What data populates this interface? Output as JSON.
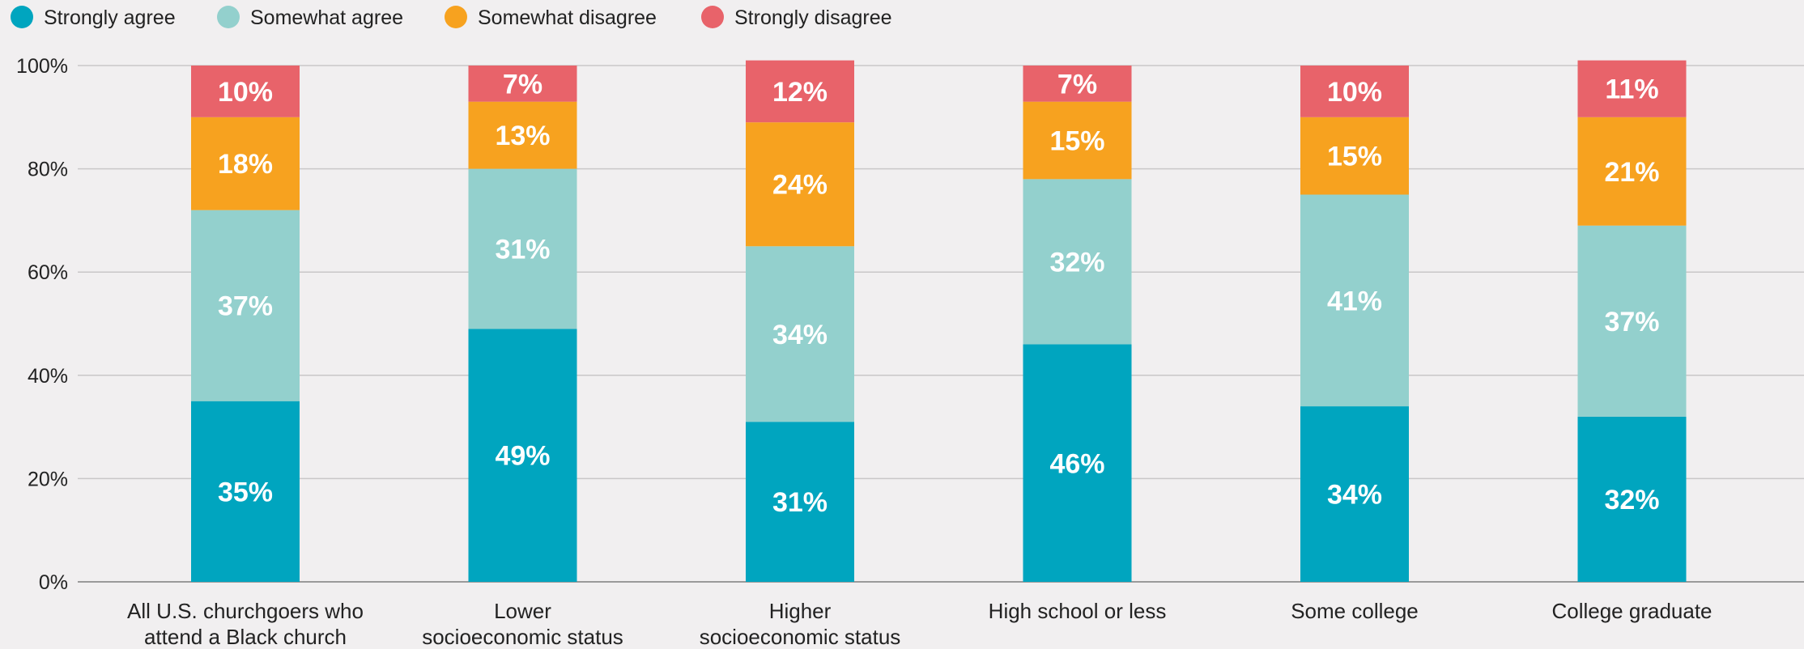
{
  "chart_data": {
    "type": "bar",
    "stacked": true,
    "title": "",
    "xlabel": "",
    "ylabel": "",
    "ylim": [
      0,
      100
    ],
    "yticks": [
      "0%",
      "20%",
      "40%",
      "60%",
      "80%",
      "100%"
    ],
    "grid": true,
    "legend_position": "top-left",
    "categories": [
      [
        "All U.S. churchgoers who",
        "attend a Black church"
      ],
      [
        "Lower",
        "socioeconomic status"
      ],
      [
        "Higher",
        "socioeconomic status"
      ],
      [
        "High school or less"
      ],
      [
        "Some college"
      ],
      [
        "College graduate"
      ]
    ],
    "series": [
      {
        "name": "Strongly agree",
        "color": "#00a5bf",
        "values": [
          35,
          49,
          31,
          46,
          34,
          32
        ]
      },
      {
        "name": "Somewhat agree",
        "color": "#93d0cd",
        "values": [
          37,
          31,
          34,
          32,
          41,
          37
        ]
      },
      {
        "name": "Somewhat disagree",
        "color": "#f7a21f",
        "values": [
          18,
          13,
          24,
          15,
          15,
          21
        ]
      },
      {
        "name": "Strongly disagree",
        "color": "#e8636a",
        "values": [
          10,
          7,
          12,
          7,
          10,
          11
        ]
      }
    ],
    "data_label_suffix": "%"
  }
}
